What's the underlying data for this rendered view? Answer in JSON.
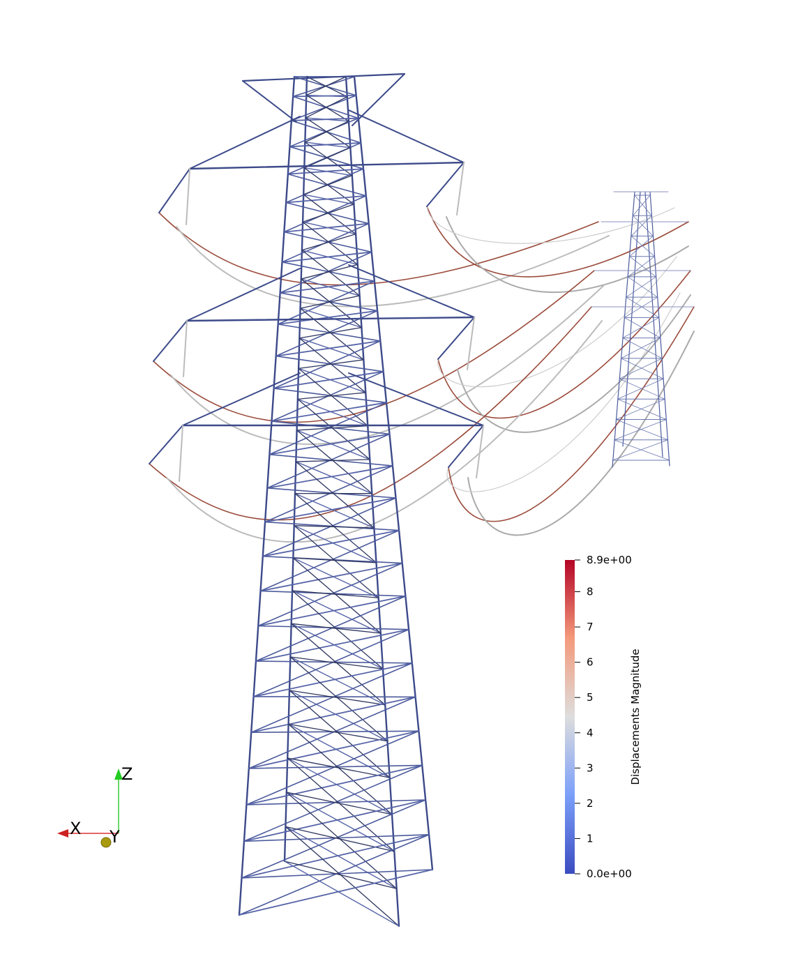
{
  "colorbar": {
    "title": "Displacements Magnitude",
    "range": [
      {
        "value": 0,
        "label": "0.0e+00"
      },
      {
        "value": 8.9,
        "label": "8.9e+00"
      }
    ],
    "ticks": [
      1,
      2,
      3,
      4,
      5,
      6,
      7,
      8
    ]
  },
  "axes": {
    "x": "X",
    "y": "Y",
    "z": "Z"
  }
}
